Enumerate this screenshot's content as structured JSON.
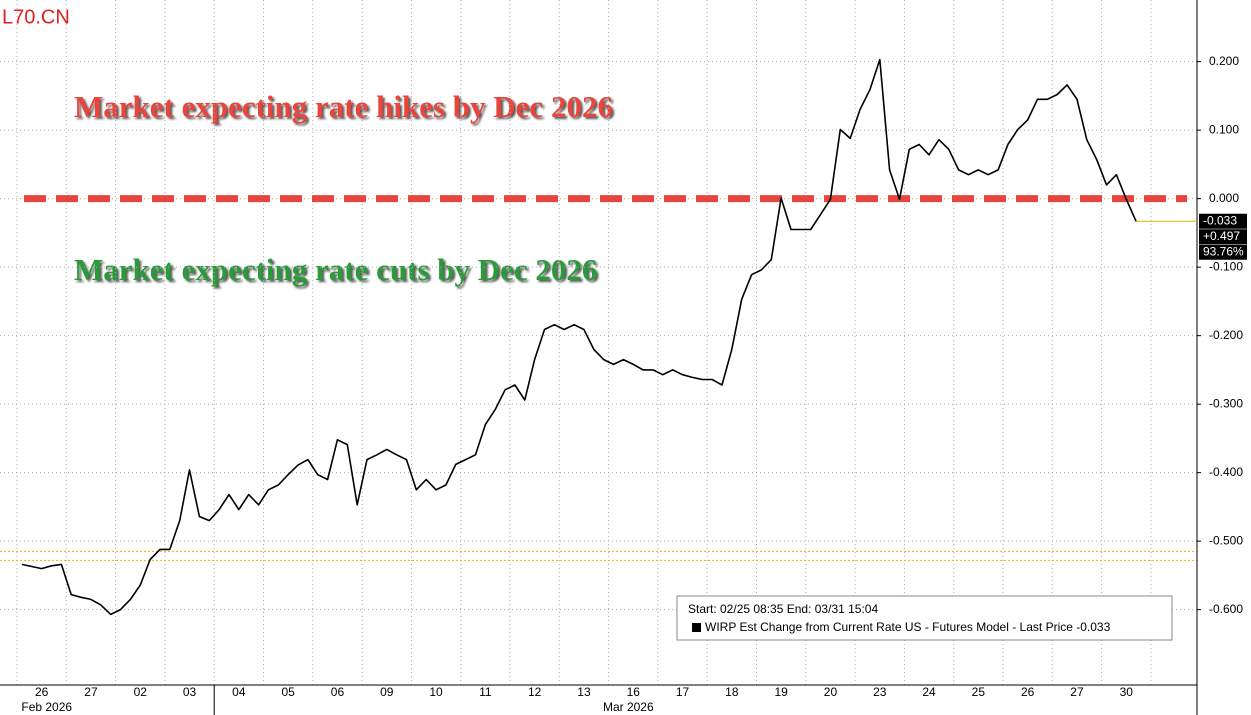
{
  "chart_data": {
    "type": "line",
    "watermark": "L70.CN",
    "annotations": [
      "Market expecting rate hikes by Dec 2026",
      "Market expecting rate cuts by Dec 2026"
    ],
    "legend": {
      "header": "Start: 02/25 08:35 End: 03/31 15:04",
      "entry": "WIRP Est Change from Current Rate US - Futures Model - Last Price -0.033"
    },
    "price_labels": [
      "-0.033",
      "+0.497",
      "93.76%"
    ],
    "month_labels": [
      "Feb 2026",
      "Mar 2026"
    ],
    "categories": [
      null,
      null,
      "26",
      null,
      null,
      null,
      null,
      "27",
      null,
      null,
      null,
      null,
      "02",
      null,
      null,
      null,
      null,
      "03",
      null,
      null,
      null,
      null,
      "04",
      null,
      null,
      null,
      null,
      "05",
      null,
      null,
      null,
      null,
      "06",
      null,
      null,
      null,
      null,
      "09",
      null,
      null,
      null,
      null,
      "10",
      null,
      null,
      null,
      null,
      "11",
      null,
      null,
      null,
      null,
      "12",
      null,
      null,
      null,
      null,
      "13",
      null,
      null,
      null,
      null,
      "16",
      null,
      null,
      null,
      null,
      "17",
      null,
      null,
      null,
      null,
      "18",
      null,
      null,
      null,
      null,
      "19",
      null,
      null,
      null,
      null,
      "20",
      null,
      null,
      null,
      null,
      "23",
      null,
      null,
      null,
      null,
      "24",
      null,
      null,
      null,
      null,
      "25",
      null,
      null,
      null,
      null,
      "26",
      null,
      null,
      null,
      null,
      "27",
      null,
      null,
      null,
      null,
      "30",
      null,
      null
    ],
    "series": [
      {
        "name": "WIRP Est Change from Current Rate US - Futures Model",
        "color": "#000000",
        "values": [
          -0.534,
          -0.537,
          -0.54,
          -0.536,
          -0.534,
          -0.578,
          -0.582,
          -0.585,
          -0.593,
          -0.607,
          -0.6,
          -0.585,
          -0.564,
          -0.527,
          -0.512,
          -0.512,
          -0.47,
          -0.396,
          -0.464,
          -0.47,
          -0.454,
          -0.432,
          -0.454,
          -0.432,
          -0.447,
          -0.425,
          -0.418,
          -0.403,
          -0.389,
          -0.381,
          -0.403,
          -0.41,
          -0.352,
          -0.359,
          -0.447,
          -0.381,
          -0.374,
          -0.366,
          -0.374,
          -0.381,
          -0.425,
          -0.41,
          -0.425,
          -0.418,
          -0.388,
          -0.381,
          -0.374,
          -0.33,
          -0.308,
          -0.279,
          -0.272,
          -0.294,
          -0.235,
          -0.191,
          -0.184,
          -0.191,
          -0.184,
          -0.191,
          -0.22,
          -0.235,
          -0.242,
          -0.235,
          -0.242,
          -0.25,
          -0.25,
          -0.257,
          -0.25,
          -0.257,
          -0.261,
          -0.264,
          -0.264,
          -0.272,
          -0.22,
          -0.147,
          -0.111,
          -0.104,
          -0.089,
          0.001,
          -0.045,
          -0.045,
          -0.045,
          -0.023,
          -0.001,
          0.101,
          0.088,
          0.13,
          0.159,
          0.203,
          0.042,
          -0.001,
          0.072,
          0.079,
          0.064,
          0.086,
          0.072,
          0.042,
          0.035,
          0.042,
          0.035,
          0.042,
          0.079,
          0.101,
          0.115,
          0.145,
          0.145,
          0.152,
          0.166,
          0.145,
          0.086,
          0.057,
          0.02,
          0.035,
          -0.001,
          -0.033,
          null
        ]
      }
    ],
    "hline": 0,
    "hline_color": "#e8453c",
    "reference_lines": [
      -0.515,
      -0.528
    ],
    "reference_color": "#d9b800",
    "ylim": [
      -0.71,
      0.29
    ],
    "yticks": [
      {
        "value": 0.2,
        "label": "0.200"
      },
      {
        "value": 0.1,
        "label": "0.100"
      },
      {
        "value": 0,
        "label": "0.000"
      },
      {
        "value": -0.1,
        "label": "-0.100"
      },
      {
        "value": -0.2,
        "label": "-0.200"
      },
      {
        "value": -0.3,
        "label": "-0.300"
      },
      {
        "value": -0.4,
        "label": "-0.400"
      },
      {
        "value": -0.5,
        "label": "-0.500"
      },
      {
        "value": -0.6,
        "label": "-0.600"
      }
    ],
    "grid": true
  }
}
